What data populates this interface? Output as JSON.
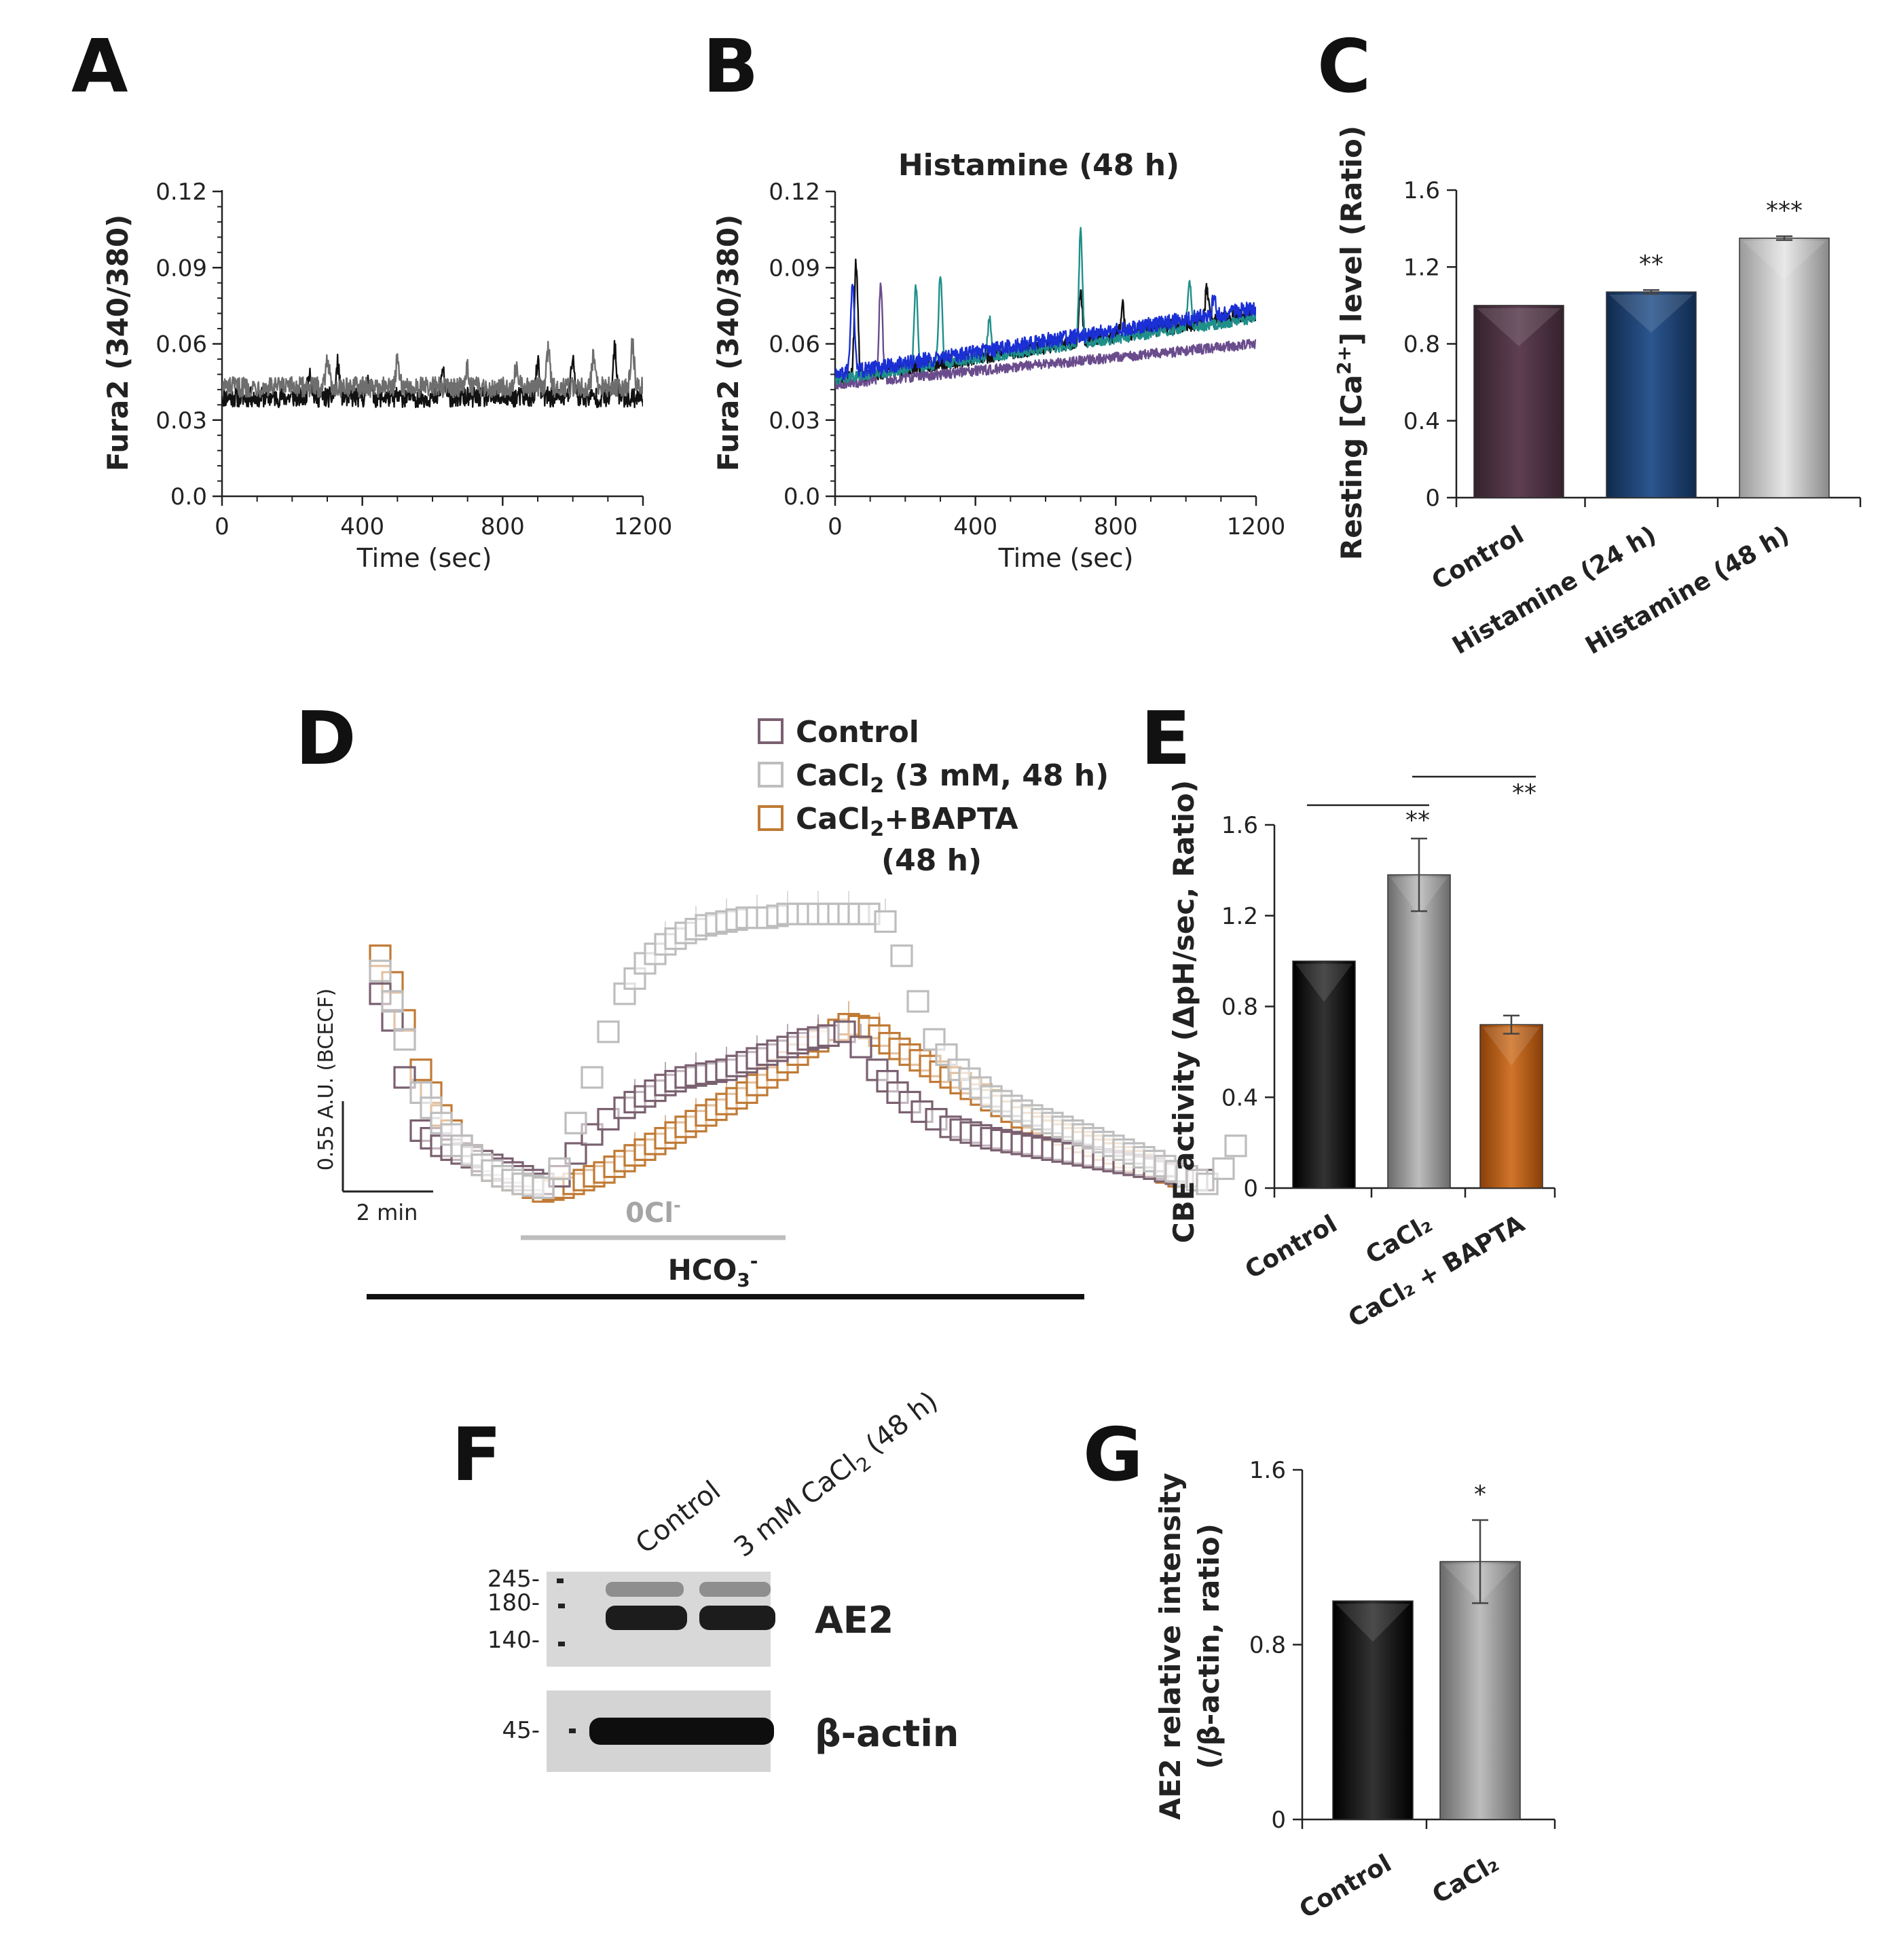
{
  "panels": {
    "A": "A",
    "B": "B",
    "C": "C",
    "D": "D",
    "E": "E",
    "F": "F",
    "G": "G"
  },
  "colors": {
    "black_trace": "#111111",
    "gray_trace": "#6e6e6e",
    "control_bar_C": "#4a3140",
    "histamine24_bar": "#1d3f6e",
    "histamine48_bar": "#c6c6c6",
    "control_marker": "#7a6070",
    "cacl2_marker": "#bdbdbd",
    "bapta_marker": "#c07a35",
    "bapta_bar": "#b35a13"
  },
  "chart_data": [
    {
      "id": "A",
      "type": "line",
      "title": "",
      "xlabel": "Time (sec)",
      "ylabel": "Fura2 (340/380)",
      "xlim": [
        0,
        1200
      ],
      "ylim": [
        0.0,
        0.12
      ],
      "xticks": [
        "0",
        "400",
        "800",
        "1200"
      ],
      "yticks": [
        "0.0",
        "0.03",
        "0.06",
        "0.09",
        "0.12"
      ],
      "series": [
        {
          "name": "trace black",
          "color": "#111111",
          "baseline": 0.039,
          "noise": 0.004,
          "peaks": [
            [
              250,
              0.05
            ],
            [
              330,
              0.052
            ],
            [
              420,
              0.048
            ],
            [
              630,
              0.05
            ],
            [
              900,
              0.052
            ],
            [
              1000,
              0.055
            ],
            [
              1120,
              0.058
            ]
          ]
        },
        {
          "name": "trace gray",
          "color": "#6e6e6e",
          "baseline": 0.043,
          "noise": 0.004,
          "peaks": [
            [
              300,
              0.055
            ],
            [
              500,
              0.053
            ],
            [
              700,
              0.05
            ],
            [
              840,
              0.052
            ],
            [
              930,
              0.057
            ],
            [
              1060,
              0.056
            ],
            [
              1170,
              0.06
            ]
          ]
        }
      ]
    },
    {
      "id": "B",
      "type": "line",
      "title": "Histamine (48 h)",
      "xlabel": "Time (sec)",
      "ylabel": "Fura2 (340/380)",
      "xlim": [
        0,
        1200
      ],
      "ylim": [
        0.0,
        0.12
      ],
      "xticks": [
        "0",
        "400",
        "800",
        "1200"
      ],
      "yticks": [
        "0.0",
        "0.03",
        "0.06",
        "0.09",
        "0.12"
      ],
      "series": [
        {
          "name": "trace 1",
          "color": "#111111",
          "start": 0.046,
          "end": 0.072,
          "noise": 0.003,
          "peaks": [
            [
              60,
              0.092
            ],
            [
              700,
              0.08
            ],
            [
              820,
              0.075
            ],
            [
              1060,
              0.082
            ]
          ]
        },
        {
          "name": "trace 2",
          "color": "#6a4c8c",
          "start": 0.044,
          "end": 0.06,
          "noise": 0.002,
          "peaks": [
            [
              130,
              0.084
            ]
          ]
        },
        {
          "name": "trace 3",
          "color": "#1f8f8a",
          "start": 0.046,
          "end": 0.07,
          "noise": 0.002,
          "peaks": [
            [
              230,
              0.083
            ],
            [
              300,
              0.088
            ],
            [
              440,
              0.07
            ],
            [
              700,
              0.105
            ],
            [
              1010,
              0.085
            ]
          ]
        },
        {
          "name": "trace 4",
          "color": "#1a2fd4",
          "start": 0.048,
          "end": 0.074,
          "noise": 0.003,
          "peaks": [
            [
              50,
              0.085
            ],
            [
              600,
              0.062
            ],
            [
              1080,
              0.078
            ]
          ]
        }
      ]
    },
    {
      "id": "C",
      "type": "bar",
      "ylabel": "Resting [Ca2+] level (Ratio)",
      "ylabel_parts": {
        "pre": "Resting [Ca",
        "sup": "2+",
        "post": "] level (Ratio)"
      },
      "ylim": [
        0,
        1.6
      ],
      "yticks": [
        "0",
        "0.4",
        "0.8",
        "1.2",
        "1.6"
      ],
      "categories": [
        "Control",
        "Histamine (24 h)",
        "Histamine (48 h)"
      ],
      "values": [
        1.0,
        1.07,
        1.35
      ],
      "errors": [
        0.0,
        0.01,
        0.01
      ],
      "significance": [
        "",
        "**",
        "***"
      ],
      "colors": [
        "#4a3140",
        "#1d3f6e",
        "#c6c6c6"
      ]
    },
    {
      "id": "D",
      "type": "scatter",
      "legend": [
        "Control",
        "CaCl2 (3 mM, 48 h)",
        "CaCl2+BAPTA",
        "(48 h)"
      ],
      "legend_parts": [
        {
          "pre": "Control",
          "sub": "",
          "post": ""
        },
        {
          "pre": "CaCl",
          "sub": "2",
          "post": " (3 mM, 48 h)"
        },
        {
          "pre": "CaCl",
          "sub": "2",
          "post": "+BAPTA"
        }
      ],
      "legend_line4": "(48 h)",
      "scale_y_label": "0.55 A.U. (BCECF)",
      "scale_x_label": "2 min",
      "bar_0cl_label": "0Cl-",
      "bar_0cl_parts": {
        "pre": "0Cl",
        "sup": "-"
      },
      "bar_hco3_label": "HCO3-",
      "bar_hco3_parts": {
        "pre": "HCO",
        "sub": "3",
        "sup": "-"
      },
      "series": [
        {
          "name": "Control",
          "color": "#7a6070",
          "points": [
            [
              0,
              0.92
            ],
            [
              0.3,
              0.85
            ],
            [
              0.6,
              0.7
            ],
            [
              1.0,
              0.56
            ],
            [
              1.5,
              0.52
            ],
            [
              2.0,
              0.5
            ],
            [
              2.5,
              0.48
            ],
            [
              3.0,
              0.46
            ],
            [
              3.5,
              0.44
            ],
            [
              4.0,
              0.42
            ],
            [
              4.4,
              0.44
            ],
            [
              4.8,
              0.5
            ],
            [
              5.2,
              0.55
            ],
            [
              5.6,
              0.59
            ],
            [
              6.0,
              0.62
            ],
            [
              6.5,
              0.65
            ],
            [
              7.0,
              0.68
            ],
            [
              7.5,
              0.7
            ],
            [
              8.0,
              0.71
            ],
            [
              8.5,
              0.72
            ],
            [
              9.0,
              0.74
            ],
            [
              9.5,
              0.76
            ],
            [
              10.0,
              0.78
            ],
            [
              10.5,
              0.8
            ],
            [
              11.0,
              0.81
            ],
            [
              11.4,
              0.82
            ],
            [
              11.8,
              0.78
            ],
            [
              12.2,
              0.72
            ],
            [
              12.7,
              0.66
            ],
            [
              13.3,
              0.61
            ],
            [
              14.0,
              0.57
            ],
            [
              15.0,
              0.54
            ],
            [
              16.0,
              0.52
            ],
            [
              17.0,
              0.5
            ],
            [
              18.0,
              0.48
            ],
            [
              19.0,
              0.46
            ],
            [
              19.8,
              0.44
            ],
            [
              20.2,
              0.43
            ]
          ]
        },
        {
          "name": "CaCl2 (3 mM, 48 h)",
          "color": "#bdbdbd",
          "points": [
            [
              0,
              0.98
            ],
            [
              0.3,
              0.9
            ],
            [
              0.6,
              0.8
            ],
            [
              1.0,
              0.66
            ],
            [
              1.5,
              0.58
            ],
            [
              2.0,
              0.52
            ],
            [
              2.5,
              0.47
            ],
            [
              3.0,
              0.44
            ],
            [
              3.5,
              0.42
            ],
            [
              4.0,
              0.41
            ],
            [
              4.4,
              0.46
            ],
            [
              4.8,
              0.58
            ],
            [
              5.2,
              0.7
            ],
            [
              5.6,
              0.82
            ],
            [
              6.0,
              0.92
            ],
            [
              6.5,
              1.0
            ],
            [
              7.0,
              1.05
            ],
            [
              7.5,
              1.08
            ],
            [
              8.0,
              1.1
            ],
            [
              8.5,
              1.11
            ],
            [
              9.0,
              1.12
            ],
            [
              9.5,
              1.12
            ],
            [
              10.0,
              1.13
            ],
            [
              10.5,
              1.13
            ],
            [
              11.0,
              1.13
            ],
            [
              11.5,
              1.13
            ],
            [
              12.0,
              1.13
            ],
            [
              12.4,
              1.11
            ],
            [
              12.8,
              1.02
            ],
            [
              13.2,
              0.9
            ],
            [
              13.6,
              0.8
            ],
            [
              14.2,
              0.72
            ],
            [
              15.0,
              0.65
            ],
            [
              16.0,
              0.6
            ],
            [
              17.0,
              0.56
            ],
            [
              18.0,
              0.52
            ],
            [
              19.0,
              0.48
            ],
            [
              19.8,
              0.44
            ],
            [
              20.3,
              0.42
            ],
            [
              20.7,
              0.46
            ],
            [
              21.0,
              0.52
            ]
          ]
        },
        {
          "name": "CaCl2+BAPTA",
          "color": "#c07a35",
          "points": [
            [
              0,
              1.02
            ],
            [
              0.3,
              0.95
            ],
            [
              0.6,
              0.85
            ],
            [
              1.0,
              0.72
            ],
            [
              1.5,
              0.6
            ],
            [
              2.0,
              0.52
            ],
            [
              2.5,
              0.47
            ],
            [
              3.0,
              0.44
            ],
            [
              3.5,
              0.42
            ],
            [
              4.0,
              0.4
            ],
            [
              4.5,
              0.41
            ],
            [
              5.0,
              0.43
            ],
            [
              5.5,
              0.45
            ],
            [
              6.0,
              0.48
            ],
            [
              6.5,
              0.51
            ],
            [
              7.0,
              0.54
            ],
            [
              7.5,
              0.57
            ],
            [
              8.0,
              0.6
            ],
            [
              8.5,
              0.63
            ],
            [
              9.0,
              0.66
            ],
            [
              9.5,
              0.7
            ],
            [
              10.0,
              0.74
            ],
            [
              10.5,
              0.78
            ],
            [
              11.0,
              0.81
            ],
            [
              11.5,
              0.84
            ],
            [
              12.0,
              0.83
            ],
            [
              12.5,
              0.79
            ],
            [
              13.0,
              0.76
            ],
            [
              14.0,
              0.7
            ],
            [
              15.0,
              0.64
            ],
            [
              16.0,
              0.58
            ],
            [
              17.0,
              0.54
            ],
            [
              18.0,
              0.5
            ],
            [
              19.0,
              0.46
            ],
            [
              19.6,
              0.44
            ]
          ]
        }
      ]
    },
    {
      "id": "E",
      "type": "bar",
      "ylabel": "CBE activity (ΔpH/sec, Ratio)",
      "ylim": [
        0,
        1.6
      ],
      "yticks": [
        "0",
        "0.4",
        "0.8",
        "1.2",
        "1.6"
      ],
      "categories": [
        "Control",
        "CaCl₂",
        "CaCl₂ + BAPTA"
      ],
      "values": [
        1.0,
        1.38,
        0.72
      ],
      "errors": [
        0.0,
        0.16,
        0.04
      ],
      "colors": [
        "#111111",
        "#b0b0b0",
        "#b35a13"
      ],
      "significance": [
        {
          "between": [
            0,
            1
          ],
          "label": "**"
        },
        {
          "between": [
            1,
            2
          ],
          "label": "**"
        }
      ]
    },
    {
      "id": "F",
      "type": "table",
      "lanes": [
        "Control",
        "3 mM CaCl2 (48 h)"
      ],
      "lane2_parts": {
        "pre": "3 mM CaCl",
        "sub": "2",
        "post": " (48 h)"
      },
      "markers_top": [
        "245-",
        "180-",
        "140-"
      ],
      "markers_bottom": [
        "45-"
      ],
      "labels": [
        "AE2",
        "β-actin"
      ]
    },
    {
      "id": "G",
      "type": "bar",
      "ylabel": "AE2 relative intensity (/β-actin, ratio)",
      "ylabel_lines": [
        "AE2 relative intensity",
        "(/β-actin, ratio)"
      ],
      "ylim": [
        0,
        1.6
      ],
      "yticks": [
        "0",
        "0.8",
        "1.6"
      ],
      "categories": [
        "Control",
        "CaCl₂"
      ],
      "values": [
        1.0,
        1.18
      ],
      "errors": [
        0.0,
        0.19
      ],
      "significance": [
        "",
        "*"
      ],
      "colors": [
        "#111111",
        "#8a8a8a"
      ]
    }
  ]
}
